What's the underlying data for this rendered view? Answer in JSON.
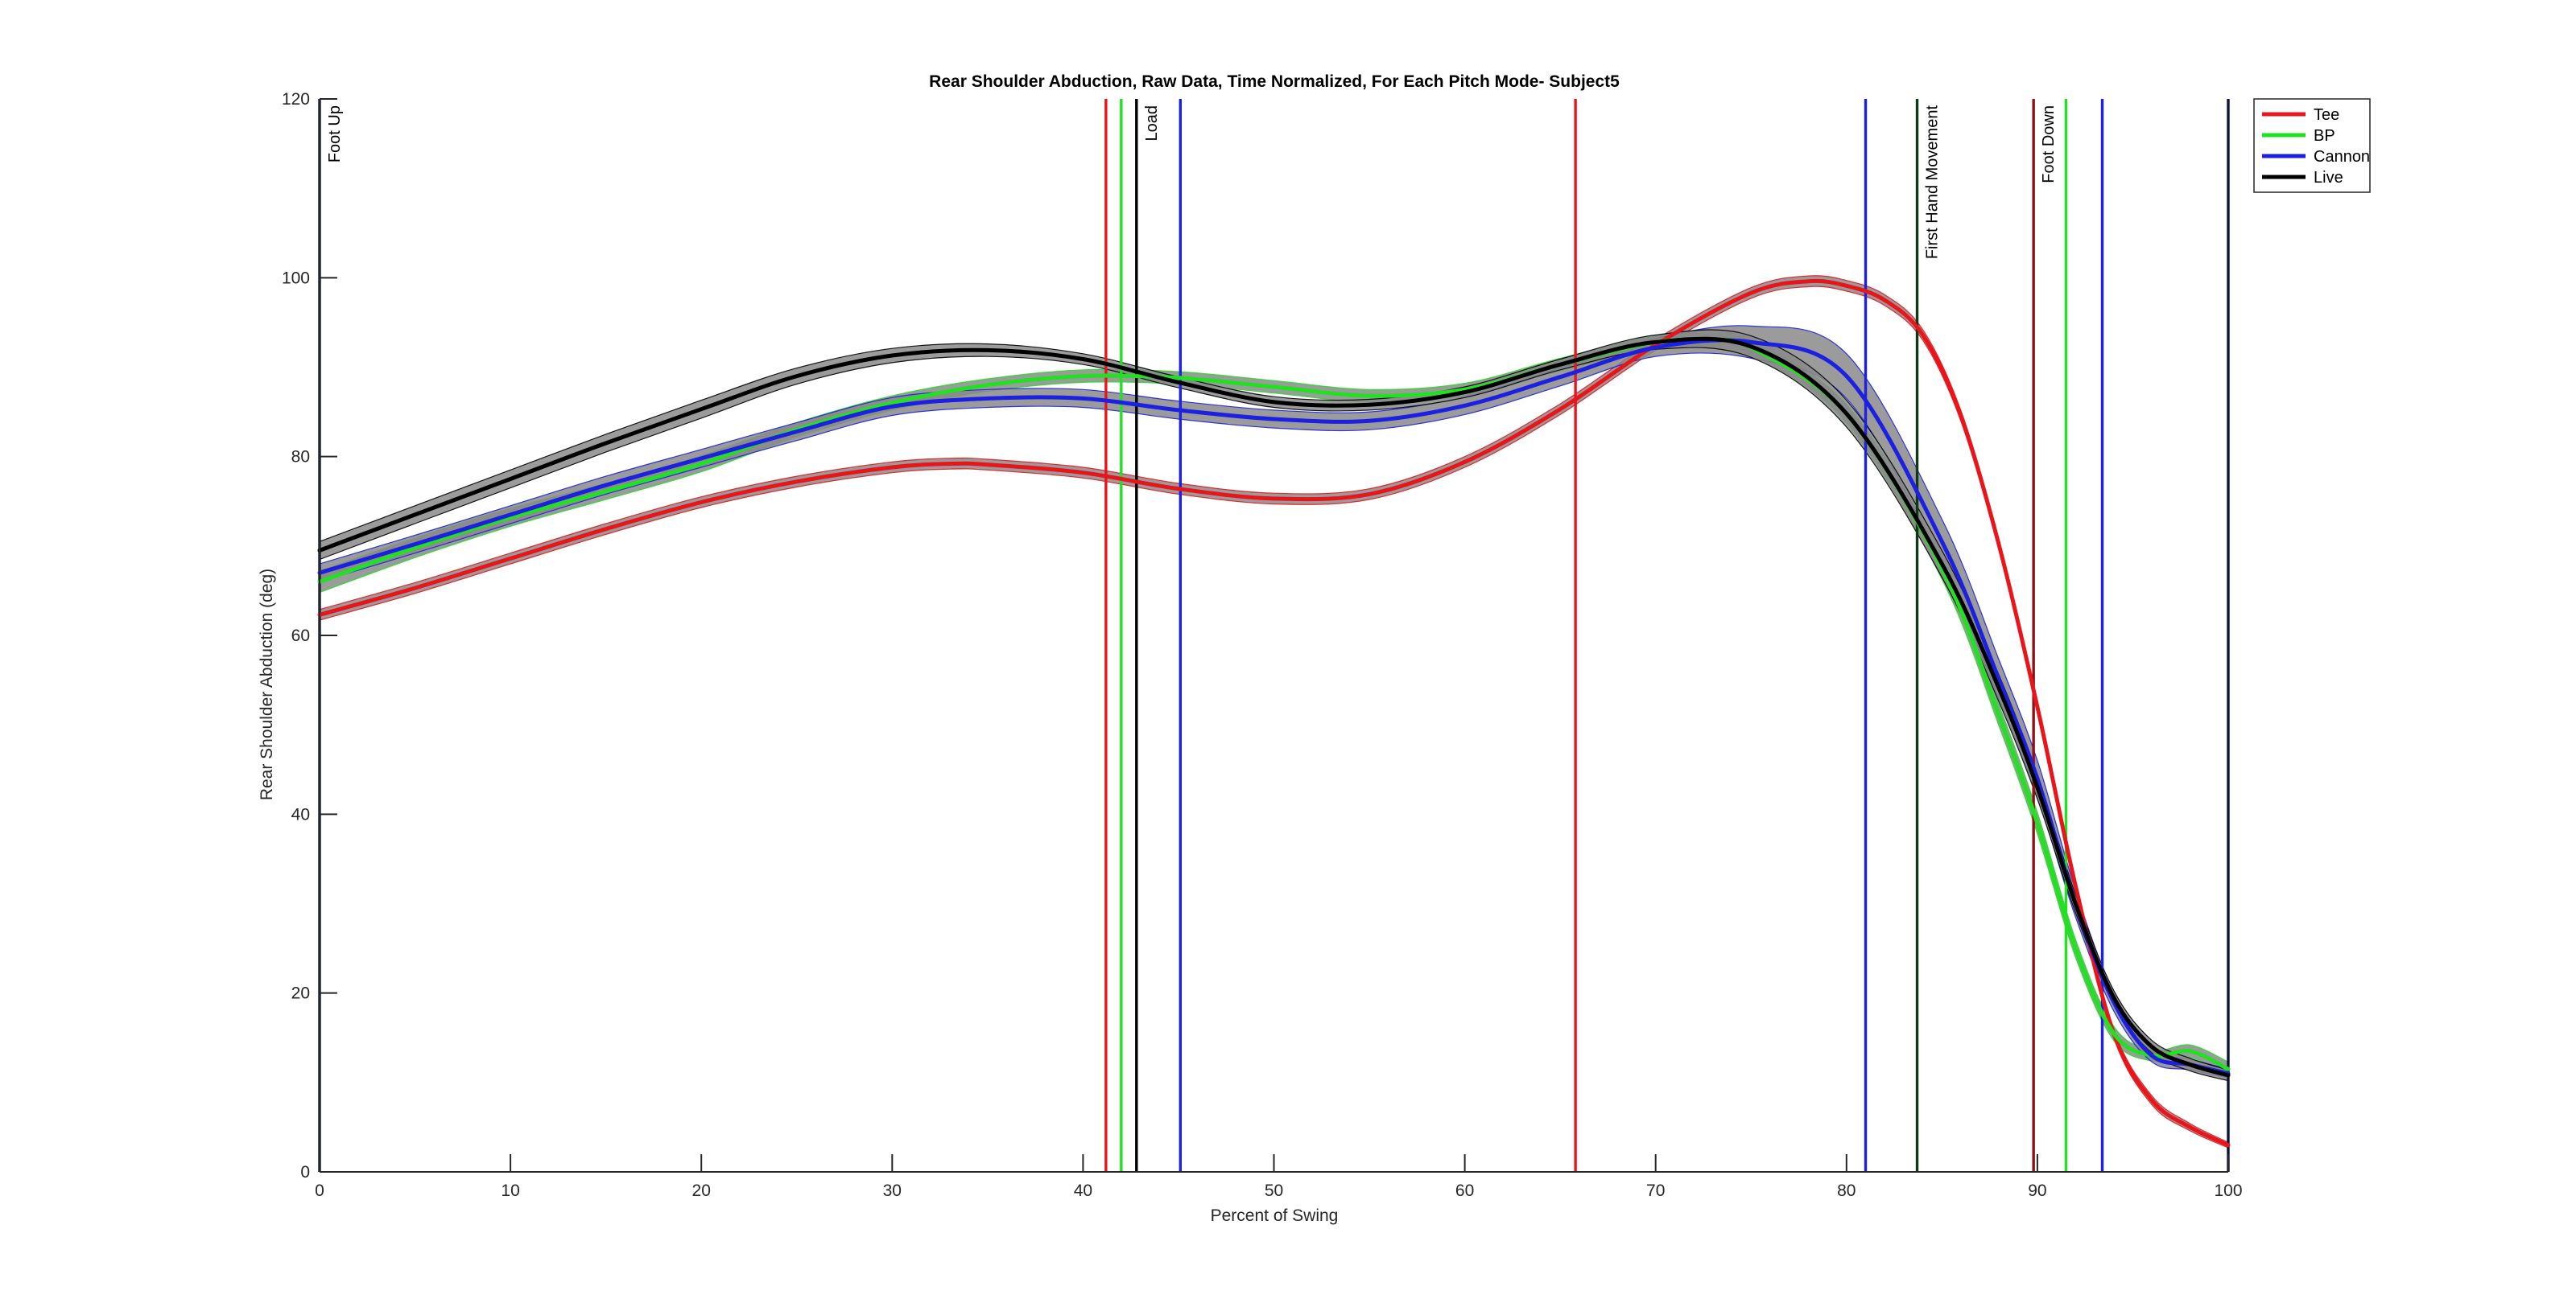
{
  "chart_data": {
    "type": "line",
    "title": "Rear Shoulder Abduction, Raw Data, Time Normalized, For Each Pitch Mode- Subject5",
    "xlabel": "Percent of Swing",
    "ylabel": "Rear Shoulder Abduction (deg)",
    "xlim": [
      0,
      100
    ],
    "ylim": [
      0,
      120
    ],
    "xticks": [
      0,
      10,
      20,
      30,
      40,
      50,
      60,
      70,
      80,
      90,
      100
    ],
    "yticks": [
      0,
      20,
      40,
      60,
      80,
      100,
      120
    ],
    "grid": false,
    "legend_position": "top-right",
    "series": [
      {
        "name": "Tee",
        "color": "#e8151b",
        "x": [
          0,
          5,
          10,
          15,
          20,
          25,
          30,
          33,
          35,
          40,
          45,
          50,
          55,
          60,
          65,
          70,
          75,
          78,
          80,
          82,
          84,
          86,
          88,
          90,
          92,
          94,
          96,
          98,
          100
        ],
        "values": [
          62.3,
          65.3,
          68.6,
          71.9,
          74.9,
          77.2,
          78.8,
          79.2,
          79.1,
          78.2,
          76.4,
          75.3,
          75.8,
          79.4,
          85.3,
          92.5,
          98.3,
          99.6,
          99.1,
          97.5,
          93.6,
          84.5,
          70.0,
          52.0,
          32.0,
          15.5,
          8.0,
          5.0,
          3.0
        ],
        "band": [
          0.6,
          0.6,
          0.6,
          0.6,
          0.6,
          0.6,
          0.6,
          0.6,
          0.6,
          0.6,
          0.6,
          0.6,
          0.6,
          0.6,
          0.6,
          0.6,
          0.6,
          0.6,
          0.6,
          0.6,
          0.6,
          0.6,
          0.6,
          0.6,
          0.6,
          0.5,
          0.5,
          0.4,
          0.3
        ]
      },
      {
        "name": "BP",
        "color": "#22e022",
        "x": [
          0,
          5,
          10,
          15,
          20,
          25,
          30,
          35,
          40,
          45,
          50,
          55,
          60,
          65,
          70,
          73,
          75,
          80,
          85,
          88,
          90,
          92,
          94,
          96,
          98,
          100
        ],
        "values": [
          66.0,
          69.8,
          73.2,
          76.1,
          79.2,
          83.0,
          86.0,
          88.0,
          89.0,
          88.8,
          87.8,
          86.8,
          87.5,
          90.3,
          92.8,
          93.0,
          92.2,
          84.8,
          67.5,
          51.0,
          39.0,
          25.0,
          15.5,
          13.0,
          13.5,
          11.5
        ],
        "band": [
          1.2,
          1.1,
          1.0,
          0.9,
          0.9,
          0.8,
          0.8,
          0.7,
          0.7,
          0.7,
          0.7,
          0.7,
          0.7,
          0.7,
          0.7,
          0.7,
          0.8,
          1.0,
          1.2,
          1.2,
          1.2,
          1.0,
          0.8,
          0.6,
          0.7,
          0.8
        ]
      },
      {
        "name": "Cannon",
        "color": "#1c20e0",
        "x": [
          0,
          5,
          10,
          15,
          20,
          25,
          30,
          35,
          40,
          45,
          50,
          55,
          60,
          65,
          70,
          75,
          80,
          85,
          88,
          90,
          92,
          94,
          96,
          98,
          100
        ],
        "values": [
          67.0,
          70.2,
          73.5,
          76.8,
          79.8,
          82.8,
          85.6,
          86.5,
          86.5,
          85.2,
          84.2,
          84.0,
          85.7,
          88.9,
          92.2,
          92.8,
          89.0,
          70.5,
          55.0,
          44.0,
          30.0,
          19.0,
          13.0,
          12.0,
          11.0
        ],
        "band": [
          1.0,
          1.0,
          1.0,
          1.0,
          1.0,
          1.0,
          1.0,
          1.0,
          1.0,
          1.0,
          1.0,
          1.0,
          1.0,
          1.0,
          1.0,
          1.8,
          2.5,
          2.5,
          2.2,
          2.0,
          1.5,
          1.0,
          0.7,
          0.6,
          0.5
        ]
      },
      {
        "name": "Live",
        "color": "#000000",
        "x": [
          0,
          5,
          10,
          15,
          20,
          25,
          30,
          35,
          40,
          45,
          50,
          55,
          60,
          65,
          70,
          75,
          80,
          85,
          88,
          90,
          92,
          94,
          96,
          98,
          100
        ],
        "values": [
          69.5,
          73.5,
          77.5,
          81.5,
          85.3,
          89.0,
          91.3,
          91.9,
          90.9,
          88.3,
          86.1,
          85.8,
          87.2,
          90.3,
          92.8,
          92.3,
          84.8,
          68.0,
          54.0,
          43.0,
          30.0,
          19.5,
          14.0,
          12.0,
          10.8
        ],
        "band": [
          1.0,
          1.0,
          1.0,
          1.0,
          1.0,
          0.9,
          0.8,
          0.7,
          0.6,
          0.6,
          0.6,
          0.6,
          0.6,
          0.6,
          0.8,
          1.2,
          1.5,
          1.5,
          1.5,
          1.3,
          1.0,
          0.8,
          0.7,
          0.7,
          0.6
        ]
      }
    ],
    "event_lines": [
      {
        "x": 0,
        "color": "#0a1438",
        "label": "Foot Up"
      },
      {
        "x": 41.2,
        "color": "#e8151b",
        "label": ""
      },
      {
        "x": 42.0,
        "color": "#22e022",
        "label": ""
      },
      {
        "x": 42.8,
        "color": "#000000",
        "label": "Load"
      },
      {
        "x": 45.1,
        "color": "#1c20e0",
        "label": ""
      },
      {
        "x": 65.8,
        "color": "#e8151b",
        "label": ""
      },
      {
        "x": 81.0,
        "color": "#1c20e0",
        "label": ""
      },
      {
        "x": 83.7,
        "color": "#0c3a12",
        "label": "First Hand Movement"
      },
      {
        "x": 89.8,
        "color": "#8a1418",
        "label": "Foot Down"
      },
      {
        "x": 91.5,
        "color": "#22e022",
        "label": ""
      },
      {
        "x": 93.4,
        "color": "#1c20e0",
        "label": ""
      },
      {
        "x": 100,
        "color": "#0a1438",
        "label": ""
      }
    ]
  }
}
